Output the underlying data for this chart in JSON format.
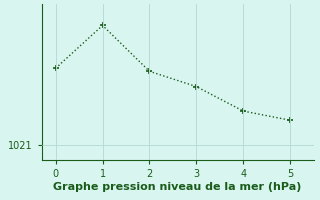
{
  "x": [
    0,
    1,
    2,
    3,
    4,
    5
  ],
  "y": [
    1023.5,
    1024.9,
    1023.4,
    1022.9,
    1022.1,
    1021.8
  ],
  "line_color": "#1a5c1a",
  "marker": "+",
  "marker_size": 5,
  "marker_linewidth": 1.2,
  "linewidth": 1.0,
  "linestyle": "dotted",
  "background_color": "#d8f5f0",
  "grid_color": "#b8ddd8",
  "xlabel": "Graphe pression niveau de la mer (hPa)",
  "xlabel_color": "#1a5c1a",
  "xlabel_fontsize": 8,
  "tick_color": "#1a5c1a",
  "tick_fontsize": 7,
  "xlim": [
    -0.3,
    5.5
  ],
  "ylim": [
    1020.5,
    1025.6
  ],
  "ytick_values": [
    1021
  ],
  "xtick_values": [
    0,
    1,
    2,
    3,
    4,
    5
  ]
}
